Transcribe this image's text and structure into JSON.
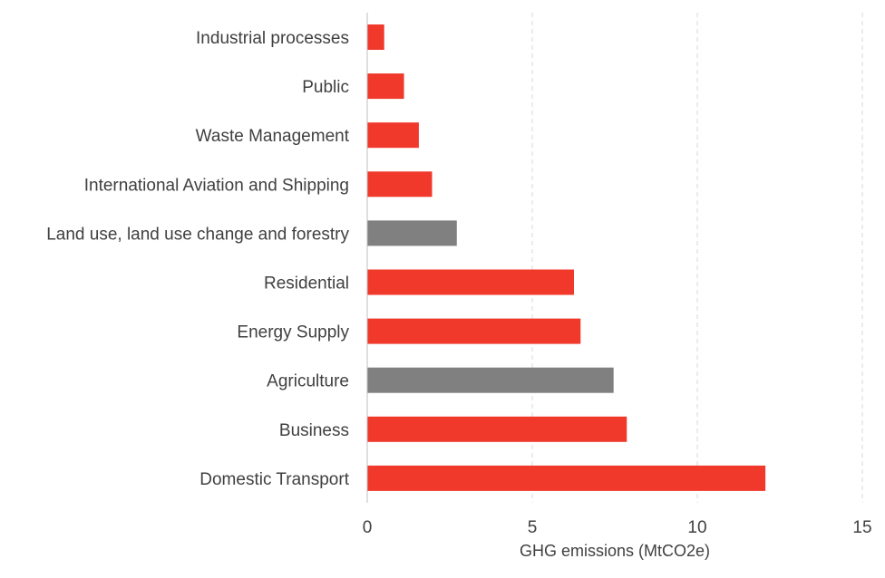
{
  "chart_data": {
    "type": "bar",
    "orientation": "horizontal",
    "categories": [
      "Industrial processes",
      "Public",
      "Waste Management",
      "International Aviation and Shipping",
      "Land use, land use change and forestry",
      "Residential",
      "Energy Supply",
      "Agriculture",
      "Business",
      "Domestic Transport"
    ],
    "values": [
      0.5,
      1.1,
      1.55,
      1.95,
      2.7,
      6.25,
      6.45,
      7.45,
      7.85,
      12.05
    ],
    "colors": [
      "#f0382b",
      "#f0382b",
      "#f0382b",
      "#f0382b",
      "#808080",
      "#f0382b",
      "#f0382b",
      "#808080",
      "#f0382b",
      "#f0382b"
    ],
    "xlabel": "GHG emissions (MtCO2e)",
    "ylabel": "",
    "title": "",
    "xlim": [
      0,
      15
    ],
    "xticks": [
      0,
      5,
      10,
      15
    ],
    "grid": true,
    "legend": "none"
  }
}
